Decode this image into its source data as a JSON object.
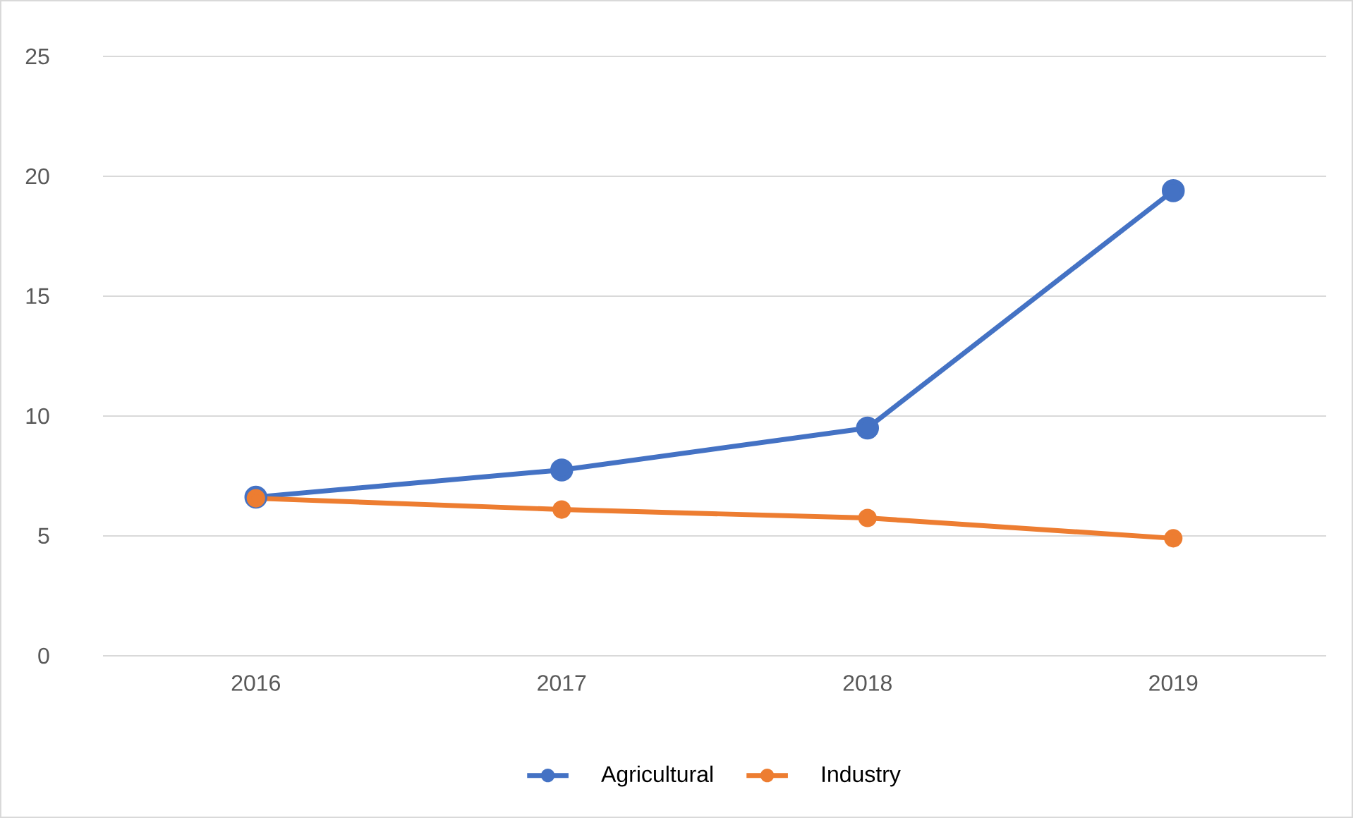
{
  "chart_data": {
    "type": "line",
    "categories": [
      "2016",
      "2017",
      "2018",
      "2019"
    ],
    "series": [
      {
        "name": "Agricultural",
        "color": "#4472c4",
        "values": [
          6.62,
          7.75,
          9.5,
          19.4
        ]
      },
      {
        "name": "Industry",
        "color": "#ed7d31",
        "values": [
          6.57,
          6.1,
          5.75,
          4.9
        ]
      }
    ],
    "ylim": [
      0,
      25
    ],
    "yticks": [
      0,
      5,
      10,
      15,
      20,
      25
    ],
    "grid": "y",
    "legend": "bottom",
    "marker": "circle",
    "line_style": "solid"
  }
}
